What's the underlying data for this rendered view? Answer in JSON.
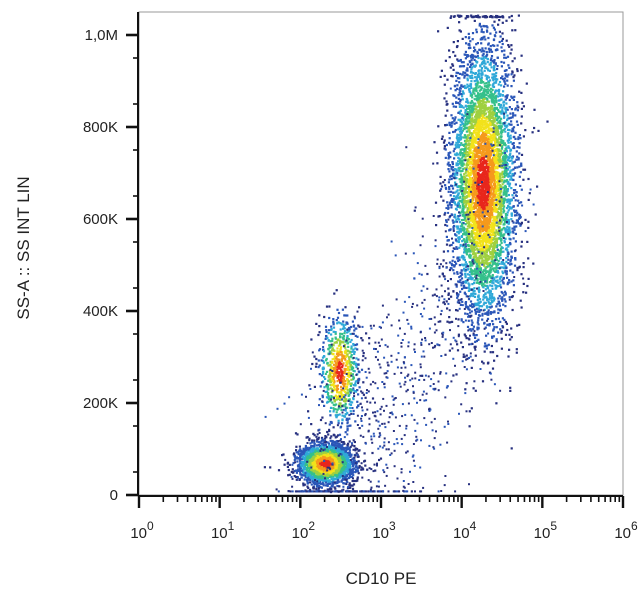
{
  "chart_data": {
    "type": "scatter",
    "subtype": "flow-cytometry density dot plot",
    "title": "",
    "xlabel": "CD10 PE",
    "ylabel": "SS-A :: SS INT LIN",
    "x_scale": "log",
    "xlim": [
      1,
      1000000
    ],
    "ylim": [
      0,
      1050000
    ],
    "x_ticks": [
      {
        "value": 1,
        "base": "10",
        "exp": "0"
      },
      {
        "value": 10,
        "base": "10",
        "exp": "1"
      },
      {
        "value": 100,
        "base": "10",
        "exp": "2"
      },
      {
        "value": 1000,
        "base": "10",
        "exp": "3"
      },
      {
        "value": 10000,
        "base": "10",
        "exp": "4"
      },
      {
        "value": 100000,
        "base": "10",
        "exp": "5"
      },
      {
        "value": 1000000,
        "base": "10",
        "exp": "6"
      }
    ],
    "y_ticks": [
      {
        "value": 0,
        "label": "0"
      },
      {
        "value": 200000,
        "label": "200K"
      },
      {
        "value": 400000,
        "label": "400K"
      },
      {
        "value": 600000,
        "label": "600K"
      },
      {
        "value": 800000,
        "label": "800K"
      },
      {
        "value": 1000000,
        "label": "1,0M"
      }
    ],
    "populations": [
      {
        "name": "lymphocytes",
        "x_center": 200,
        "y_center": 70000,
        "x_log_sd": 0.17,
        "y_sd": 22000,
        "count": 2300,
        "peak_color": "#e8261c"
      },
      {
        "name": "monocytes",
        "x_center": 300,
        "y_center": 270000,
        "x_log_sd": 0.12,
        "y_sd": 60000,
        "count": 700,
        "peak_color": "#2fa8d8"
      },
      {
        "name": "granulocytes",
        "x_center": 18000,
        "y_center": 680000,
        "x_log_sd": 0.2,
        "y_sd": 150000,
        "count": 5200,
        "peak_color": "#f2e21b"
      }
    ],
    "density_colors": [
      "#27307f",
      "#2a56b8",
      "#2fa8d8",
      "#35c08b",
      "#9fd040",
      "#f2e21b",
      "#f59a1c",
      "#e8261c"
    ],
    "grid": false,
    "legend": "none"
  }
}
